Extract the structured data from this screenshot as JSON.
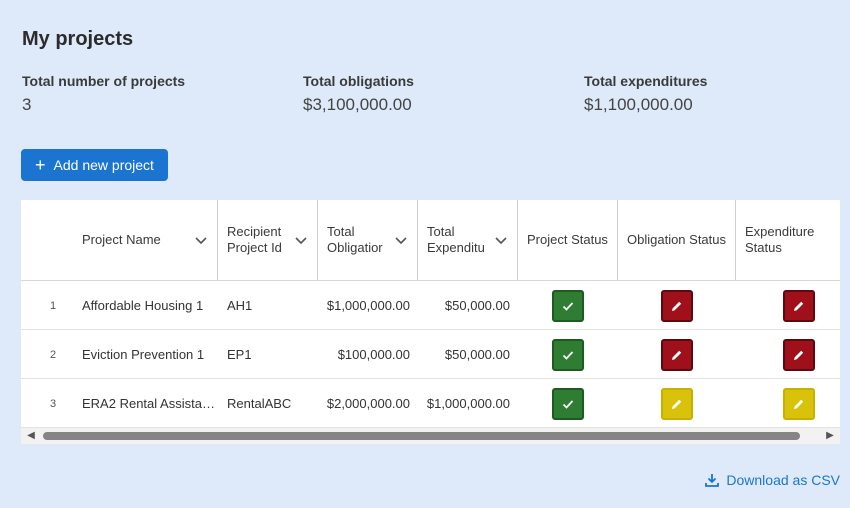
{
  "page": {
    "title": "My projects"
  },
  "stats": [
    {
      "label": "Total number of projects",
      "value": "3"
    },
    {
      "label": "Total obligations",
      "value": "$3,100,000.00"
    },
    {
      "label": "Total expenditures",
      "value": "$1,100,000.00"
    }
  ],
  "actions": {
    "add_label": "Add new project",
    "download_label": "Download as CSV"
  },
  "table": {
    "columns": [
      {
        "label": "Project Name"
      },
      {
        "label": "Recipient Project Id"
      },
      {
        "label": "Total Obligatior"
      },
      {
        "label": "Total Expenditu"
      },
      {
        "label": "Project Status"
      },
      {
        "label": "Obligation Status"
      },
      {
        "label": "Expenditure Status"
      }
    ],
    "rows": [
      {
        "num": "1",
        "name": "Affordable Housing 1",
        "rid": "AH1",
        "oblig": "$1,000,000.00",
        "exp": "$50,000.00",
        "project_status": "complete",
        "oblig_status": "needs-edit",
        "exp_status": "needs-edit"
      },
      {
        "num": "2",
        "name": "Eviction Prevention 1",
        "rid": "EP1",
        "oblig": "$100,000.00",
        "exp": "$50,000.00",
        "project_status": "complete",
        "oblig_status": "needs-edit",
        "exp_status": "needs-edit"
      },
      {
        "num": "3",
        "name": "ERA2 Rental Assista…",
        "rid": "RentalABC",
        "oblig": "$2,000,000.00",
        "exp": "$1,000,000.00",
        "project_status": "complete",
        "oblig_status": "in-progress",
        "exp_status": "in-progress"
      }
    ]
  },
  "colors": {
    "background": "#deeafa",
    "accent": "#1b75d0",
    "status_complete": "#2e7d32",
    "status_needs_edit": "#a0101a",
    "status_in_progress": "#d8c20a"
  },
  "icons": {
    "complete": "check-icon",
    "needs-edit": "pencil-icon",
    "in-progress": "pencil-icon",
    "sort": "chevron-down-icon",
    "download": "download-icon",
    "add": "plus-icon"
  }
}
